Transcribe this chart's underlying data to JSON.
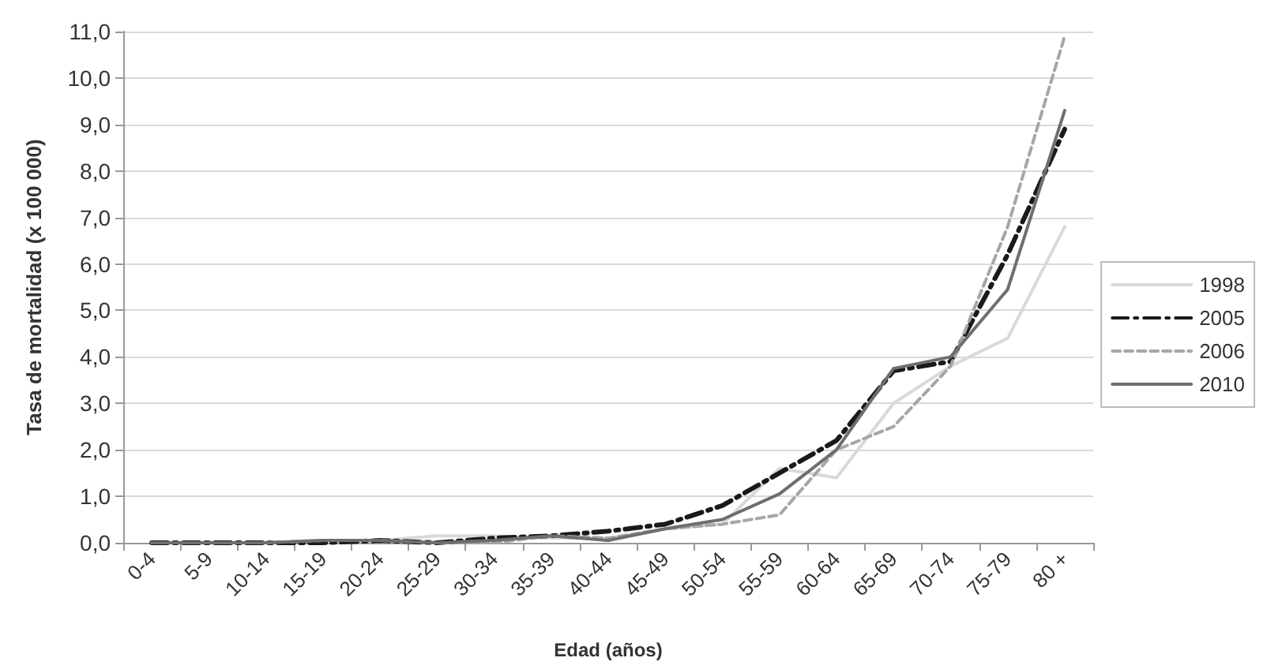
{
  "chart_data": {
    "type": "line",
    "xlabel": "Edad (años)",
    "ylabel": "Tasa de mortalidad (x 100 000)",
    "categories": [
      "0-4",
      "5-9",
      "10-14",
      "15-19",
      "20-24",
      "25-29",
      "30-34",
      "35-39",
      "40-44",
      "45-49",
      "50-54",
      "55-59",
      "60-64",
      "65-69",
      "70-74",
      "75-79",
      "80 +"
    ],
    "series": [
      {
        "name": "1998",
        "color": "#d9d9d9",
        "line_style": "solid",
        "values": [
          0,
          0,
          0,
          0.05,
          0.05,
          0.15,
          0.15,
          0.1,
          0.1,
          0.3,
          0.4,
          1.6,
          1.4,
          3.0,
          3.8,
          4.4,
          6.8
        ]
      },
      {
        "name": "2005",
        "color": "#1a1a1a",
        "line_style": "dashed",
        "values": [
          0,
          0,
          0,
          0,
          0.05,
          0,
          0.1,
          0.15,
          0.25,
          0.4,
          0.8,
          1.5,
          2.2,
          3.7,
          3.9,
          6.2,
          8.9
        ]
      },
      {
        "name": "2006",
        "color": "#a6a6a6",
        "line_style": "dotted",
        "values": [
          0,
          0,
          0,
          0.05,
          0.05,
          0,
          0,
          0.15,
          0.1,
          0.3,
          0.4,
          0.6,
          2.0,
          2.5,
          3.8,
          6.8,
          10.9
        ]
      },
      {
        "name": "2010",
        "color": "#6e6e6e",
        "line_style": "solid",
        "values": [
          0,
          0,
          0,
          0.05,
          0.05,
          0,
          0.05,
          0.15,
          0.05,
          0.3,
          0.5,
          1.05,
          2.0,
          3.75,
          4.0,
          5.45,
          9.3
        ]
      }
    ],
    "ylim": [
      0,
      11
    ],
    "yticks": [
      {
        "value": 0,
        "label": "0,0"
      },
      {
        "value": 1,
        "label": "1,0"
      },
      {
        "value": 2,
        "label": "2,0"
      },
      {
        "value": 3,
        "label": "3,0"
      },
      {
        "value": 4,
        "label": "4,0"
      },
      {
        "value": 5,
        "label": "5,0"
      },
      {
        "value": 6,
        "label": "6,0"
      },
      {
        "value": 7,
        "label": "7,0"
      },
      {
        "value": 8,
        "label": "8,0"
      },
      {
        "value": 9,
        "label": "9,0"
      },
      {
        "value": 10,
        "label": "10,0"
      },
      {
        "value": 11,
        "label": "11,0"
      }
    ],
    "grid": "y",
    "legend": "right",
    "marker": "none"
  }
}
